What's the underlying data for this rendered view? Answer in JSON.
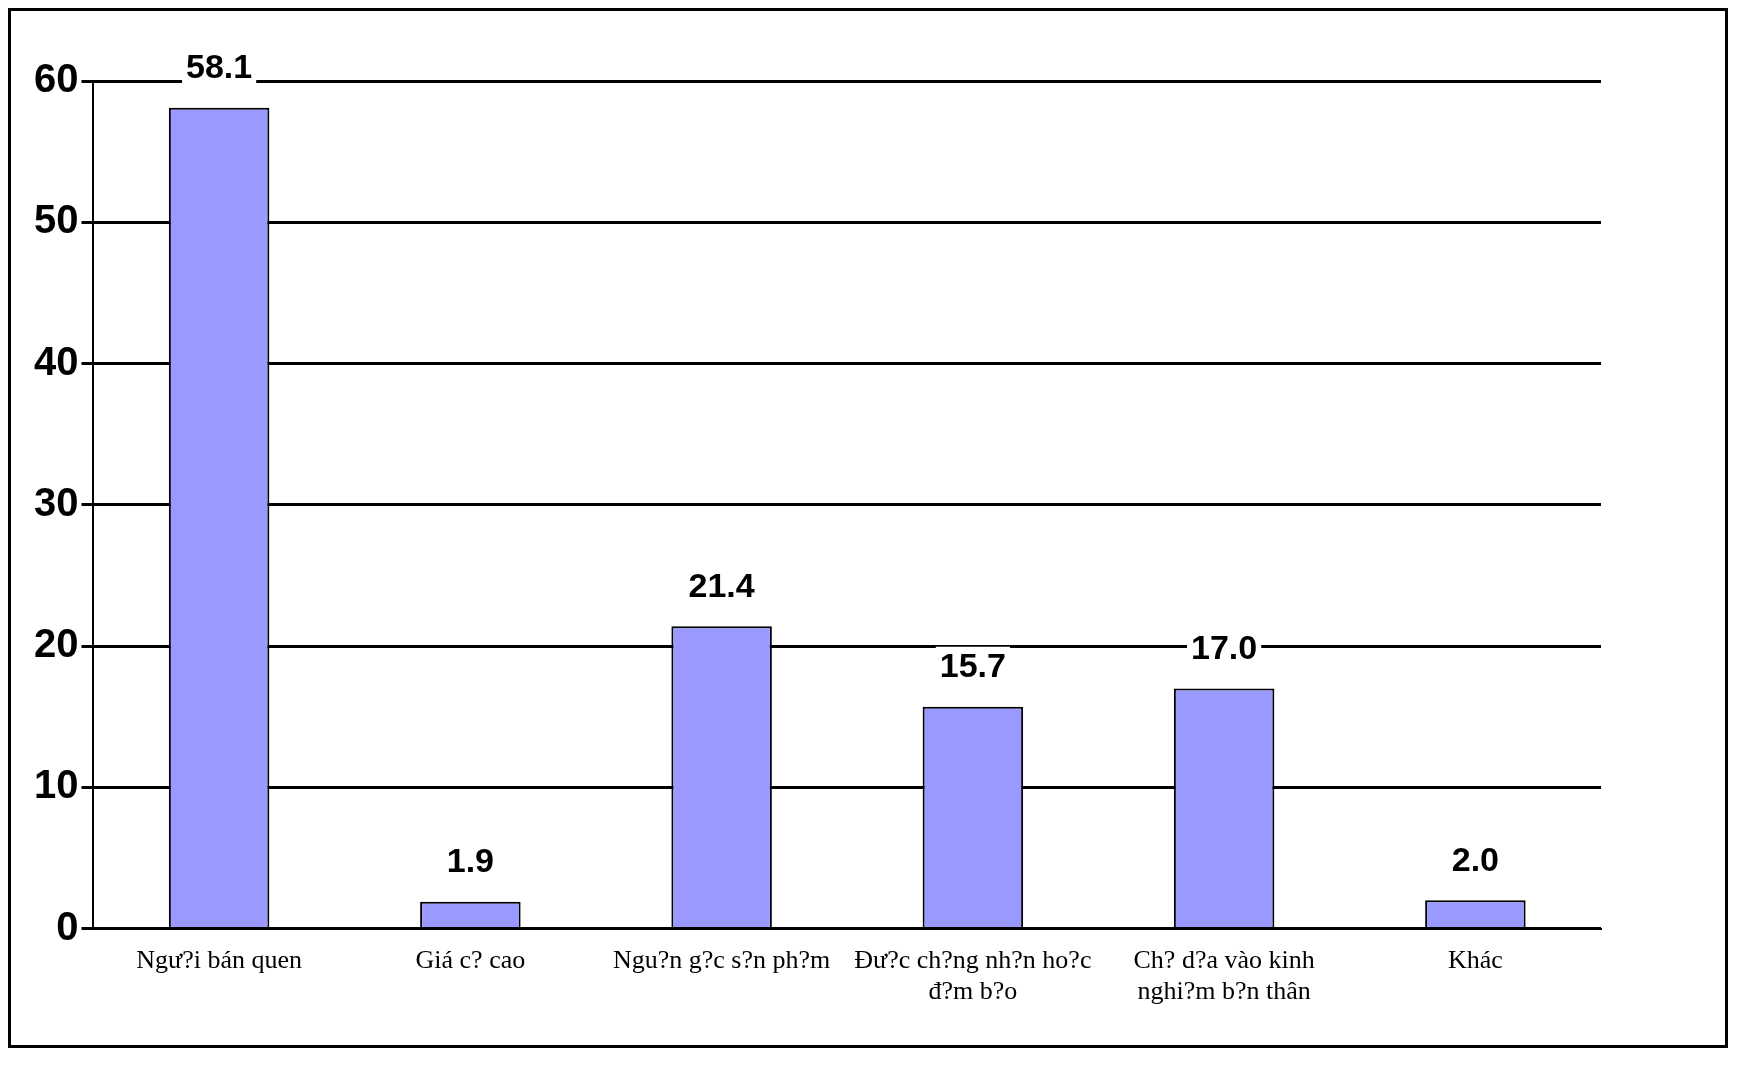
{
  "chart_data": {
    "type": "bar",
    "categories": [
      "Ngư?i bán quen",
      "Giá c? cao",
      "Ngu?n g?c s?n ph?m",
      "Đư?c ch?ng nh?n ho?c đ?m b?o",
      "Ch? d?a vào kinh nghi?m b?n thân",
      "Khác"
    ],
    "values": [
      58.1,
      1.9,
      21.4,
      15.7,
      17.0,
      2.0
    ],
    "value_labels": [
      "58.1",
      "1.9",
      "21.4",
      "15.7",
      "17.0",
      "2.0"
    ],
    "color": "#9999ff",
    "ylim": [
      0,
      60
    ],
    "yticks": [
      0,
      10,
      20,
      30,
      40,
      50,
      60
    ],
    "grid": "y",
    "legend": false
  }
}
